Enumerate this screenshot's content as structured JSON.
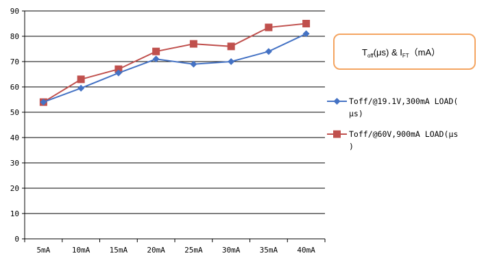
{
  "chart_data": {
    "type": "line",
    "categories": [
      "5mA",
      "10mA",
      "15mA",
      "20mA",
      "25mA",
      "30mA",
      "35mA",
      "40mA"
    ],
    "ylim": [
      0,
      90
    ],
    "yticks": [
      0,
      10,
      20,
      30,
      40,
      50,
      60,
      70,
      80,
      90
    ],
    "grid": true,
    "legend_position": "right",
    "series": [
      {
        "name_lines": [
          "Toff/@19.1V,300mA LOAD(",
          "μs)"
        ],
        "name": "Toff/@19.1V,300mA LOAD(μs)",
        "values": [
          54,
          59.5,
          65.5,
          71,
          69,
          70,
          74,
          81
        ],
        "color": "#4472c4",
        "marker": "diamond"
      },
      {
        "name_lines": [
          "Toff/@60V,900mA LOAD(μs",
          ")"
        ],
        "name": "Toff/@60V,900mA LOAD(μs)",
        "values": [
          54,
          63,
          67,
          74,
          77,
          76,
          83.5,
          85
        ],
        "color": "#c0504d",
        "marker": "square"
      }
    ],
    "annotation": {
      "t": "T",
      "t_sub": "off",
      "mid": "(μs) & I",
      "i_sub": "FT",
      "tail": "（mA）",
      "border_color": "#f4a460"
    }
  }
}
